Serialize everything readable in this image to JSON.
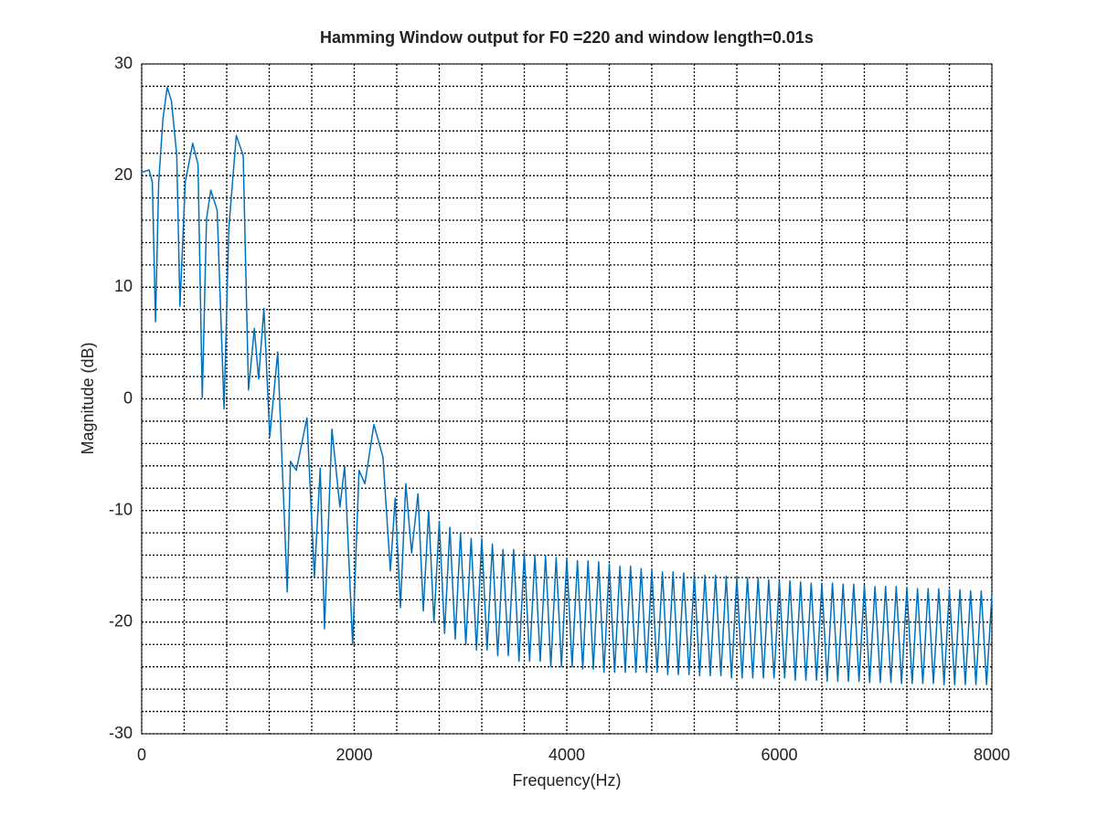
{
  "chart_data": {
    "type": "line",
    "title": "Hamming Window output for F0 =220 and window length=0.01s",
    "xlabel": "Frequency(Hz)",
    "ylabel": "Magnitude (dB)",
    "xlim": [
      0,
      8000
    ],
    "ylim": [
      -30,
      30
    ],
    "xticks": [
      0,
      2000,
      4000,
      6000,
      8000
    ],
    "yticks": [
      -30,
      -20,
      -10,
      0,
      10,
      20,
      30
    ],
    "xminorticks": [
      400,
      800,
      1200,
      1600,
      2400,
      2800,
      3200,
      3600,
      4400,
      4800,
      5200,
      5600,
      6400,
      6800,
      7200,
      7600
    ],
    "yminorticks": [
      -28,
      -26,
      -24,
      -22,
      -18,
      -16,
      -14,
      -12,
      -8,
      -6,
      -4,
      -2,
      2,
      4,
      6,
      8,
      12,
      14,
      16,
      18,
      22,
      24,
      26,
      28
    ],
    "grid": true,
    "x": [
      0,
      70,
      100,
      130,
      160,
      200,
      240,
      280,
      330,
      360,
      410,
      480,
      530,
      570,
      610,
      650,
      710,
      775,
      820,
      890,
      955,
      1005,
      1060,
      1100,
      1150,
      1205,
      1280,
      1370,
      1400,
      1455,
      1555,
      1625,
      1680,
      1720,
      1790,
      1865,
      1910,
      1985,
      2045,
      2100,
      2185,
      2270,
      2340,
      2385,
      2435,
      2485,
      2540,
      2600,
      2650,
      2700,
      2750,
      2800,
      2850,
      2900,
      2950,
      3000,
      3050,
      3100,
      3150,
      3200,
      3250,
      3300,
      3350,
      3400,
      3450,
      3500,
      3550,
      3600,
      3650,
      3700,
      3750,
      3800,
      3850,
      3900,
      3950,
      4000,
      4050,
      4100,
      4150,
      4200,
      4250,
      4300,
      4350,
      4400,
      4450,
      4500,
      4550,
      4600,
      4650,
      4700,
      4750,
      4800,
      4850,
      4900,
      4950,
      5000,
      5050,
      5100,
      5150,
      5200,
      5250,
      5300,
      5350,
      5400,
      5450,
      5500,
      5550,
      5600,
      5650,
      5700,
      5750,
      5800,
      5850,
      5900,
      5950,
      6000,
      6050,
      6100,
      6150,
      6200,
      6250,
      6300,
      6350,
      6400,
      6450,
      6500,
      6550,
      6600,
      6650,
      6700,
      6750,
      6800,
      6850,
      6900,
      6950,
      7000,
      7050,
      7100,
      7150,
      7200,
      7250,
      7300,
      7350,
      7400,
      7450,
      7500,
      7550,
      7600,
      7650,
      7700,
      7750,
      7800,
      7850,
      7900,
      7950,
      8000
    ],
    "series": [
      {
        "color": "#0072bd",
        "values": [
          20.3,
          20.5,
          19.4,
          6.9,
          19.4,
          25.1,
          27.9,
          26.7,
          21.8,
          8.3,
          19.4,
          22.9,
          21,
          0.1,
          16.1,
          18.7,
          16.9,
          -0.9,
          15.3,
          23.6,
          21.8,
          0.8,
          6.3,
          1.8,
          8.1,
          -3.4,
          4.2,
          -17.3,
          -5.6,
          -6.4,
          -1.7,
          -16,
          -6.2,
          -20.6,
          -2.7,
          -9.7,
          -6,
          -22,
          -6.4,
          -7.6,
          -2.3,
          -5.2,
          -15.4,
          -8.9,
          -18.7,
          -7.6,
          -13.8,
          -8.5,
          -19,
          -10,
          -20,
          -11,
          -21,
          -11.5,
          -21.5,
          -12,
          -22,
          -12.5,
          -22.5,
          -12.5,
          -22.5,
          -13,
          -23,
          -13.5,
          -23,
          -13.5,
          -23.5,
          -13.8,
          -23.5,
          -14,
          -23.5,
          -14,
          -24,
          -14.2,
          -24,
          -14.3,
          -24,
          -14.5,
          -24.2,
          -14.5,
          -24.2,
          -14.6,
          -24.5,
          -14.8,
          -24.5,
          -15,
          -24.5,
          -15,
          -24.5,
          -15.2,
          -24.5,
          -15.3,
          -24.5,
          -15.5,
          -24.7,
          -15.5,
          -24.7,
          -15.6,
          -24.7,
          -15.7,
          -24.8,
          -15.8,
          -24.8,
          -15.8,
          -24.8,
          -15.9,
          -25,
          -16,
          -25,
          -16,
          -25,
          -16,
          -25,
          -16.2,
          -25,
          -16.3,
          -25,
          -16.3,
          -25.2,
          -16.4,
          -25.2,
          -16.5,
          -25.2,
          -16.5,
          -25.3,
          -16.5,
          -25.3,
          -16.6,
          -25.3,
          -16.6,
          -25.3,
          -16.7,
          -25.4,
          -16.8,
          -25.4,
          -16.8,
          -25.4,
          -16.8,
          -25.5,
          -16.9,
          -25.5,
          -17,
          -25.5,
          -17,
          -25.5,
          -17,
          -25.6,
          -17.1,
          -25.6,
          -17.1,
          -25.6,
          -17.2,
          -25.6,
          -17.2,
          -25.6,
          -17.5
        ]
      }
    ]
  }
}
